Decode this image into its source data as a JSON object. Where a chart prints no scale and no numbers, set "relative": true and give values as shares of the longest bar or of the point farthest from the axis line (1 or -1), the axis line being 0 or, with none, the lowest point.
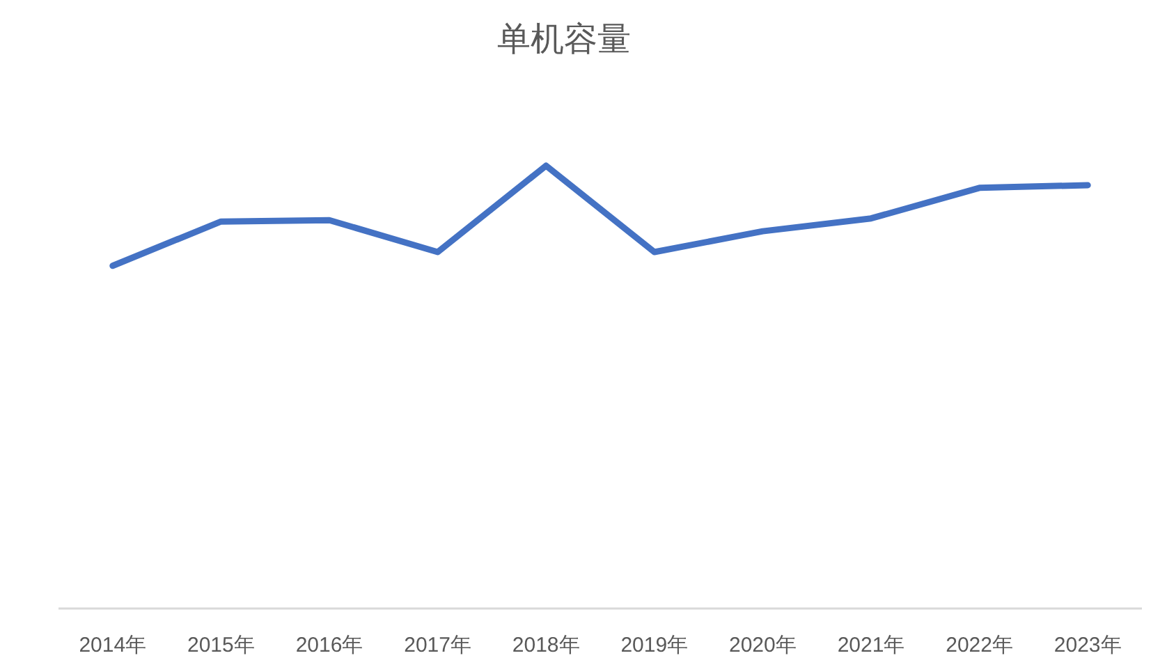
{
  "chart_data": {
    "type": "line",
    "title": "单机容量",
    "relative": true,
    "categories": [
      "2014年",
      "2015年",
      "2016年",
      "2017年",
      "2018年",
      "2019年",
      "2020年",
      "2021年",
      "2022年",
      "2023年"
    ],
    "series": [
      {
        "color": "#4472c4",
        "values": [
          0.774,
          0.874,
          0.877,
          0.805,
          1,
          0.805,
          0.852,
          0.881,
          0.95,
          0.956
        ]
      }
    ],
    "grid": false,
    "marker": "none",
    "line_style": "solid"
  }
}
